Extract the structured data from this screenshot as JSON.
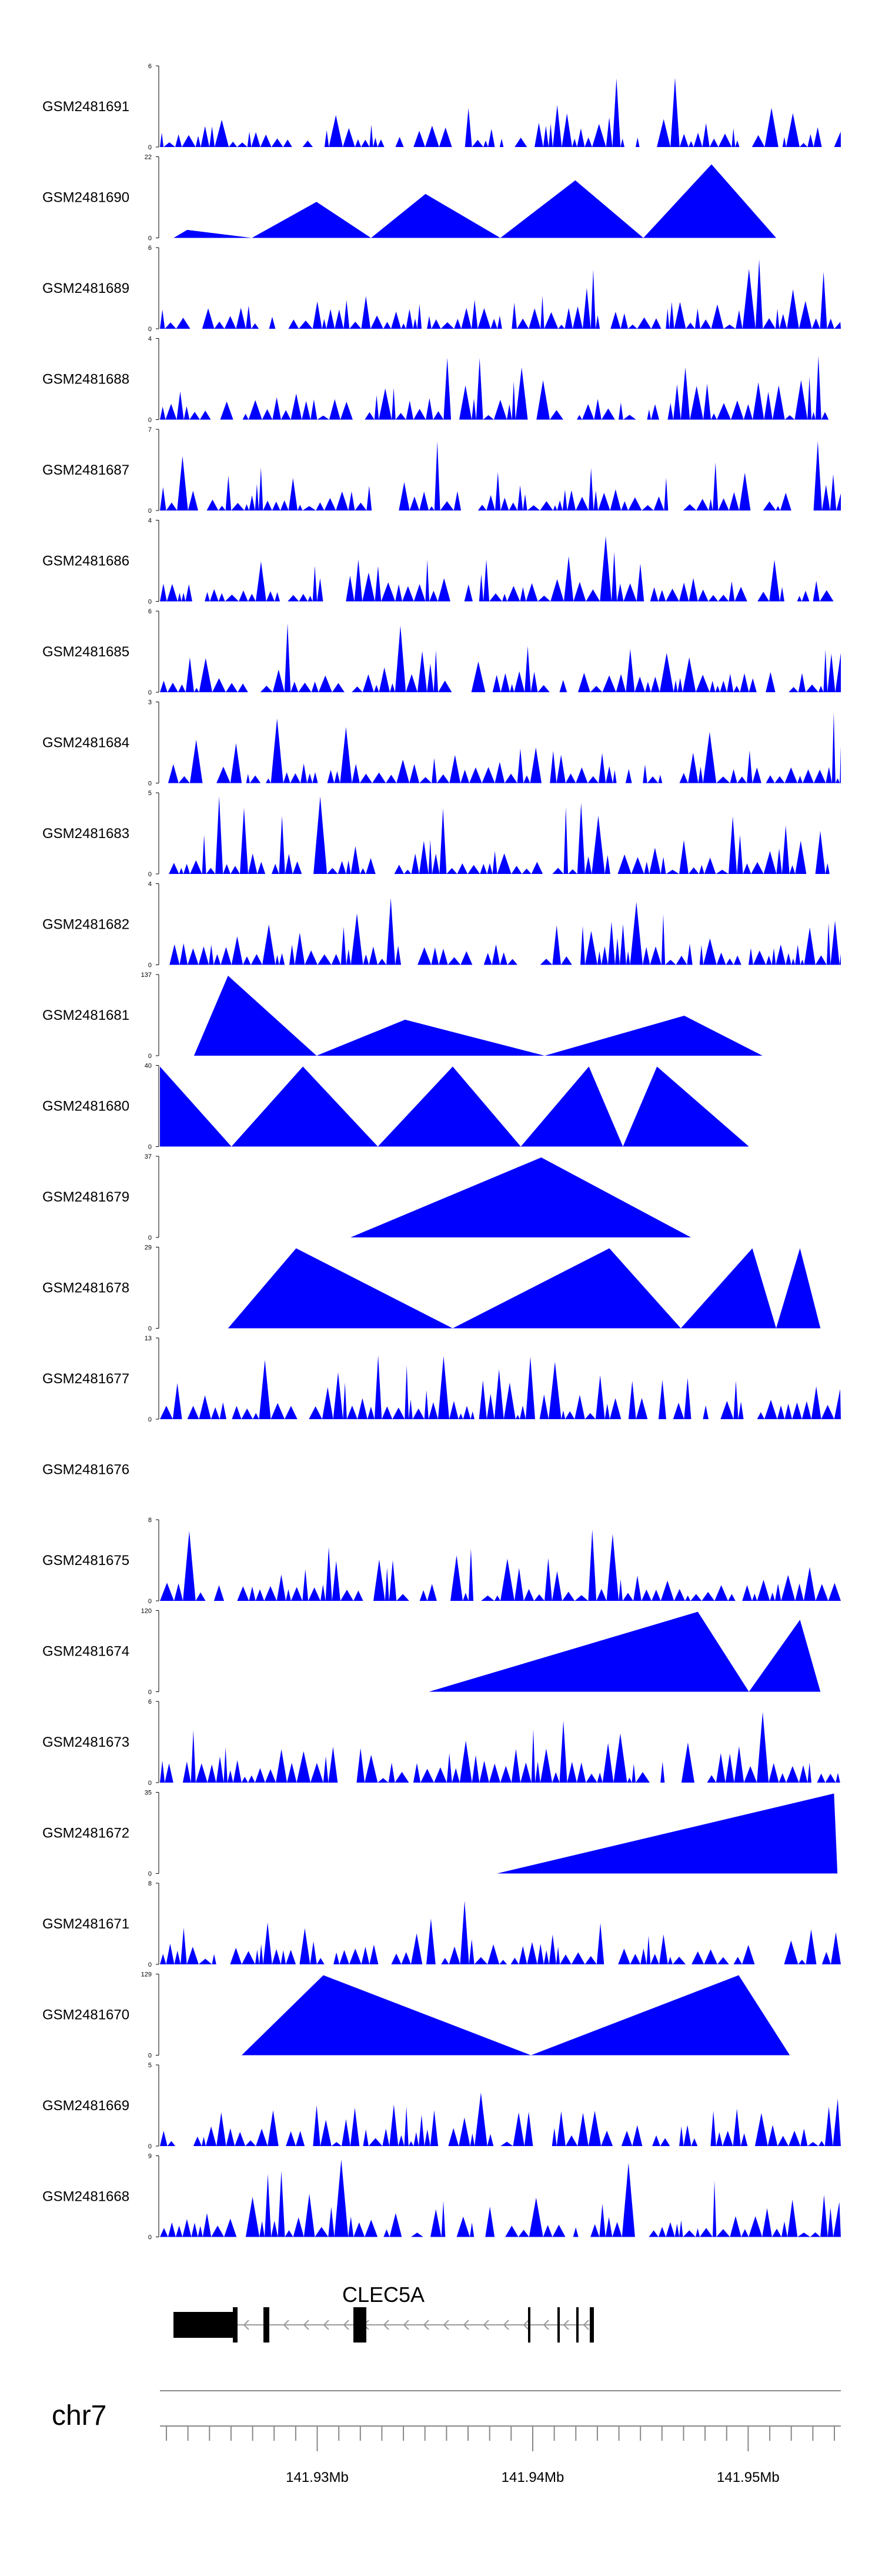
{
  "chart_data": {
    "type": "area",
    "chromosome": "chr7",
    "gene": "CLEC5A",
    "x_range_mb": [
      141.9227,
      141.9543
    ],
    "x_ticks": [
      {
        "value": 141.93,
        "label": "141.93Mb"
      },
      {
        "value": 141.94,
        "label": "141.94Mb"
      },
      {
        "value": 141.95,
        "label": "141.95Mb"
      }
    ],
    "colors": {
      "fill": "#0000ff",
      "axis": "#000000",
      "gene": "#000000",
      "intron": "#9a9a9a",
      "chrom_axis": "#888888"
    },
    "tracks": [
      {
        "name": "GSM2481691",
        "ymax": 6,
        "style": "dense"
      },
      {
        "name": "GSM2481690",
        "ymax": 22,
        "style": "sparse",
        "peaks": [
          [
            0.04,
            0.1
          ],
          [
            0.23,
            0.45
          ],
          [
            0.39,
            0.55
          ],
          [
            0.61,
            0.72
          ],
          [
            0.81,
            0.92
          ]
        ]
      },
      {
        "name": "GSM2481689",
        "ymax": 6,
        "style": "dense"
      },
      {
        "name": "GSM2481688",
        "ymax": 4,
        "style": "dense"
      },
      {
        "name": "GSM2481687",
        "ymax": 7,
        "style": "dense"
      },
      {
        "name": "GSM2481686",
        "ymax": 4,
        "style": "dense"
      },
      {
        "name": "GSM2481685",
        "ymax": 6,
        "style": "dense"
      },
      {
        "name": "GSM2481684",
        "ymax": 3,
        "style": "dense"
      },
      {
        "name": "GSM2481683",
        "ymax": 5,
        "style": "dense"
      },
      {
        "name": "GSM2481682",
        "ymax": 4,
        "style": "dense"
      },
      {
        "name": "GSM2481681",
        "ymax": 137,
        "style": "sparse",
        "peaks": [
          [
            0.1,
            1.0
          ],
          [
            0.36,
            0.45
          ],
          [
            0.77,
            0.5
          ]
        ]
      },
      {
        "name": "GSM2481680",
        "ymax": 40,
        "style": "sparse",
        "peaks": [
          [
            0.0,
            1.0
          ],
          [
            0.21,
            1.0
          ],
          [
            0.43,
            1.0
          ],
          [
            0.63,
            1.0
          ],
          [
            0.73,
            1.0
          ]
        ]
      },
      {
        "name": "GSM2481679",
        "ymax": 37,
        "style": "sparse",
        "peaks": [
          [
            0.56,
            1.0
          ]
        ]
      },
      {
        "name": "GSM2481678",
        "ymax": 29,
        "style": "sparse",
        "peaks": [
          [
            0.2,
            1.0
          ],
          [
            0.66,
            1.0
          ],
          [
            0.87,
            1.0
          ],
          [
            0.94,
            1.0
          ]
        ]
      },
      {
        "name": "GSM2481677",
        "ymax": 13,
        "style": "dense"
      },
      {
        "name": "GSM2481676",
        "ymax": 0,
        "style": "empty"
      },
      {
        "name": "GSM2481675",
        "ymax": 8,
        "style": "dense"
      },
      {
        "name": "GSM2481674",
        "ymax": 120,
        "style": "sparse",
        "peaks": [
          [
            0.79,
            1.0
          ],
          [
            0.94,
            0.9
          ]
        ]
      },
      {
        "name": "GSM2481673",
        "ymax": 6,
        "style": "dense"
      },
      {
        "name": "GSM2481672",
        "ymax": 35,
        "style": "sparse",
        "peaks": [
          [
            0.99,
            1.0
          ]
        ]
      },
      {
        "name": "GSM2481671",
        "ymax": 8,
        "style": "dense"
      },
      {
        "name": "GSM2481670",
        "ymax": 129,
        "style": "sparse",
        "peaks": [
          [
            0.24,
            1.0
          ],
          [
            0.85,
            1.0
          ]
        ]
      },
      {
        "name": "GSM2481669",
        "ymax": 5,
        "style": "dense"
      },
      {
        "name": "GSM2481668",
        "ymax": 9,
        "style": "dense"
      }
    ]
  }
}
